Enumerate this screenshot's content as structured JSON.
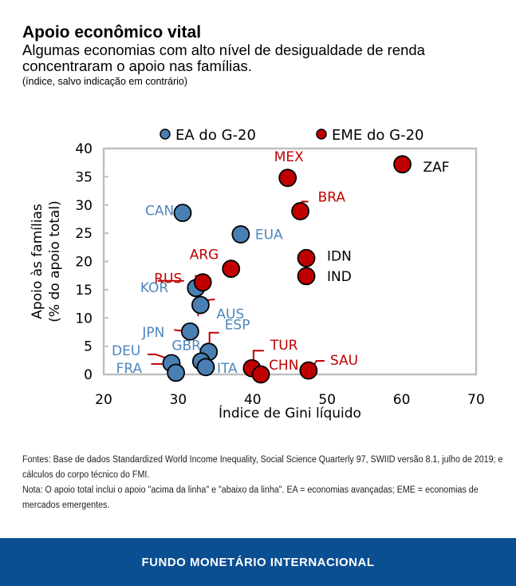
{
  "header": {
    "title": "Apoio econômico vital",
    "subtitle": "Algumas economias com alto nível de desigualdade de renda concentraram o apoio nas famílias.",
    "unit_note": "(índice, salvo indicação em contrário)"
  },
  "chart_data": {
    "type": "scatter",
    "xlabel": "Índice de Gini líquido",
    "ylabel": [
      "Apoio às famílias",
      "(% do apoio total)"
    ],
    "xlim": [
      20,
      70
    ],
    "ylim": [
      0,
      40
    ],
    "xticks": [
      20,
      30,
      40,
      50,
      60,
      70
    ],
    "yticks": [
      0,
      5,
      10,
      15,
      20,
      25,
      30,
      35,
      40
    ],
    "grid": false,
    "legend_placement": "top",
    "colors": {
      "EA": "#4a7fb3",
      "EME": "#c00000",
      "label_EA": "#4e86bd",
      "label_EME": "#c00000"
    },
    "series": [
      {
        "name": "EA do G-20",
        "key": "EA",
        "points": [
          {
            "label": "CAN",
            "x": 30.6,
            "y": 28.6
          },
          {
            "label": "EUA",
            "x": 38.4,
            "y": 24.8
          },
          {
            "label": "KOR",
            "x": 32.4,
            "y": 15.3
          },
          {
            "label": "AUS",
            "x": 33.0,
            "y": 12.3
          },
          {
            "label": "JPN",
            "x": 31.6,
            "y": 7.6
          },
          {
            "label": "ESP",
            "x": 34.1,
            "y": 4.0
          },
          {
            "label": "GBR",
            "x": 33.1,
            "y": 2.3
          },
          {
            "label": "ITA",
            "x": 33.7,
            "y": 1.3
          },
          {
            "label": "DEU",
            "x": 29.1,
            "y": 2.0
          },
          {
            "label": "FRA",
            "x": 29.7,
            "y": 0.3
          }
        ]
      },
      {
        "name": "EME do G-20",
        "key": "EME",
        "points": [
          {
            "label": "MEX",
            "x": 44.7,
            "y": 34.8
          },
          {
            "label": "ZAF",
            "x": 60.1,
            "y": 37.2
          },
          {
            "label": "BRA",
            "x": 46.4,
            "y": 28.9
          },
          {
            "label": "IDN",
            "x": 47.2,
            "y": 20.6
          },
          {
            "label": "IND",
            "x": 47.2,
            "y": 17.4
          },
          {
            "label": "ARG",
            "x": 37.1,
            "y": 18.7
          },
          {
            "label": "RUS",
            "x": 33.3,
            "y": 16.3
          },
          {
            "label": "TUR",
            "x": 39.9,
            "y": 1.1
          },
          {
            "label": "CHN",
            "x": 41.1,
            "y": 0.0
          },
          {
            "label": "SAU",
            "x": 47.5,
            "y": 0.7
          }
        ]
      }
    ]
  },
  "notes": {
    "sources": "Fontes:  Base de dados Standardized World Income Inequality, Social Science Quarterly 97, SWIID versão 8.1, julho de 2019; e cálculos do corpo técnico do FMI.",
    "note": "Nota: O apoio total inclui o apoio \"acima da linha\" e \"abaixo da linha\". EA = economias avançadas; EME = economias de mercados emergentes."
  },
  "footer": {
    "label": "FUNDO MONETÁRIO INTERNACIONAL"
  }
}
